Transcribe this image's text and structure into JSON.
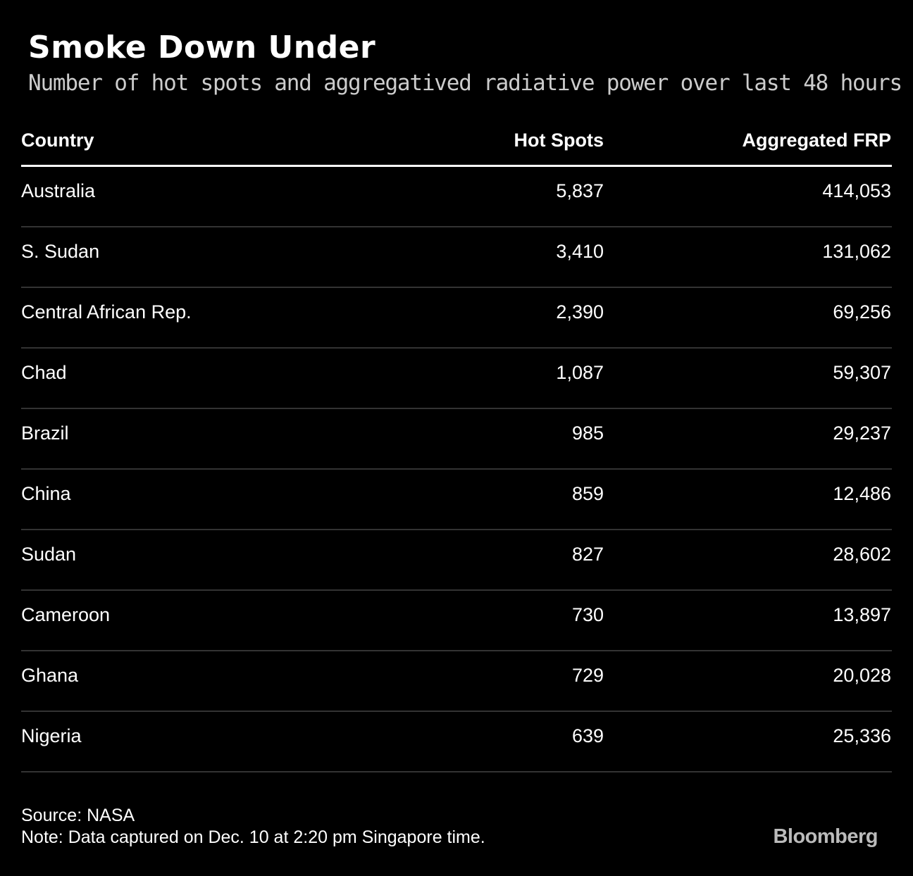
{
  "header": {
    "title": "Smoke Down Under",
    "subtitle": "Number of hot spots and aggregatived radiative power over last 48 hours"
  },
  "table": {
    "columns": [
      "Country",
      "Hot Spots",
      "Aggregated FRP"
    ],
    "rows": [
      [
        "Australia",
        "5,837",
        "414,053"
      ],
      [
        "S. Sudan",
        "3,410",
        "131,062"
      ],
      [
        "Central African Rep.",
        "2,390",
        "69,256"
      ],
      [
        "Chad",
        "1,087",
        "59,307"
      ],
      [
        "Brazil",
        "985",
        "29,237"
      ],
      [
        "China",
        "859",
        "12,486"
      ],
      [
        "Sudan",
        "827",
        "28,602"
      ],
      [
        "Cameroon",
        "730",
        "13,897"
      ],
      [
        "Ghana",
        "729",
        "20,028"
      ],
      [
        "Nigeria",
        "639",
        "25,336"
      ]
    ]
  },
  "footer": {
    "source": "Source: NASA",
    "note": "Note: Data captured on Dec. 10 at 2:20 pm Singapore time.",
    "logo": "Bloomberg"
  }
}
